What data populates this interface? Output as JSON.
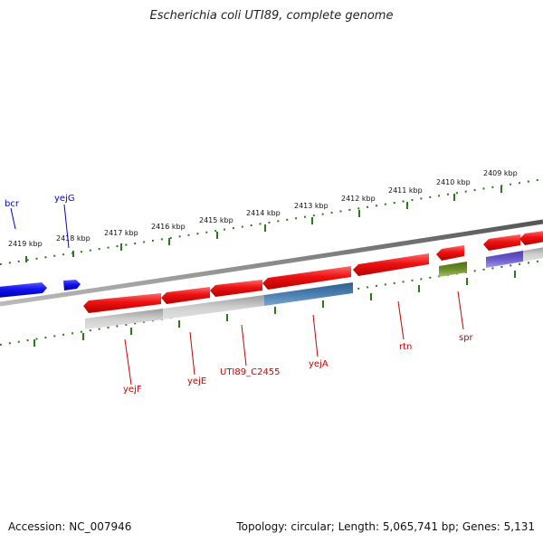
{
  "title": "Escherichia coli UTI89, complete genome",
  "accession": "Accession: NC_007946",
  "topology": "Topology: circular; Length: 5,065,741 bp; Genes: 5,131",
  "colors": {
    "gene_fwd": "#ee1111",
    "gene_blue": "#1111ee",
    "gene_label_red": "#cc0000",
    "gene_label_blue": "#0000cc",
    "cds_grey": "#c8c8c8",
    "cds_steelblue": "#4a7fb0",
    "cds_olive": "#6b8e23",
    "cds_purple": "#6a5acd",
    "backbone": "#777777",
    "ruler": "#2a7a1a"
  },
  "kbp_labels": [
    "2419 kbp",
    "2418 kbp",
    "2417 kbp",
    "2416 kbp",
    "2415 kbp",
    "2414 kbp",
    "2413 kbp",
    "2412 kbp",
    "2411 kbp",
    "2410 kbp",
    "2409 kbp"
  ],
  "genes_top": [
    {
      "name": "bcr",
      "color": "blue"
    },
    {
      "name": "yejG",
      "color": "blue"
    }
  ],
  "genes_bottom": [
    {
      "name": "yejF",
      "color": "red"
    },
    {
      "name": "yejE",
      "color": "red"
    },
    {
      "name": "UTI89_C2455",
      "color": "red"
    },
    {
      "name": "yejA",
      "color": "red"
    },
    {
      "name": "rtn",
      "color": "red"
    },
    {
      "name": "spr",
      "color": "red"
    }
  ]
}
